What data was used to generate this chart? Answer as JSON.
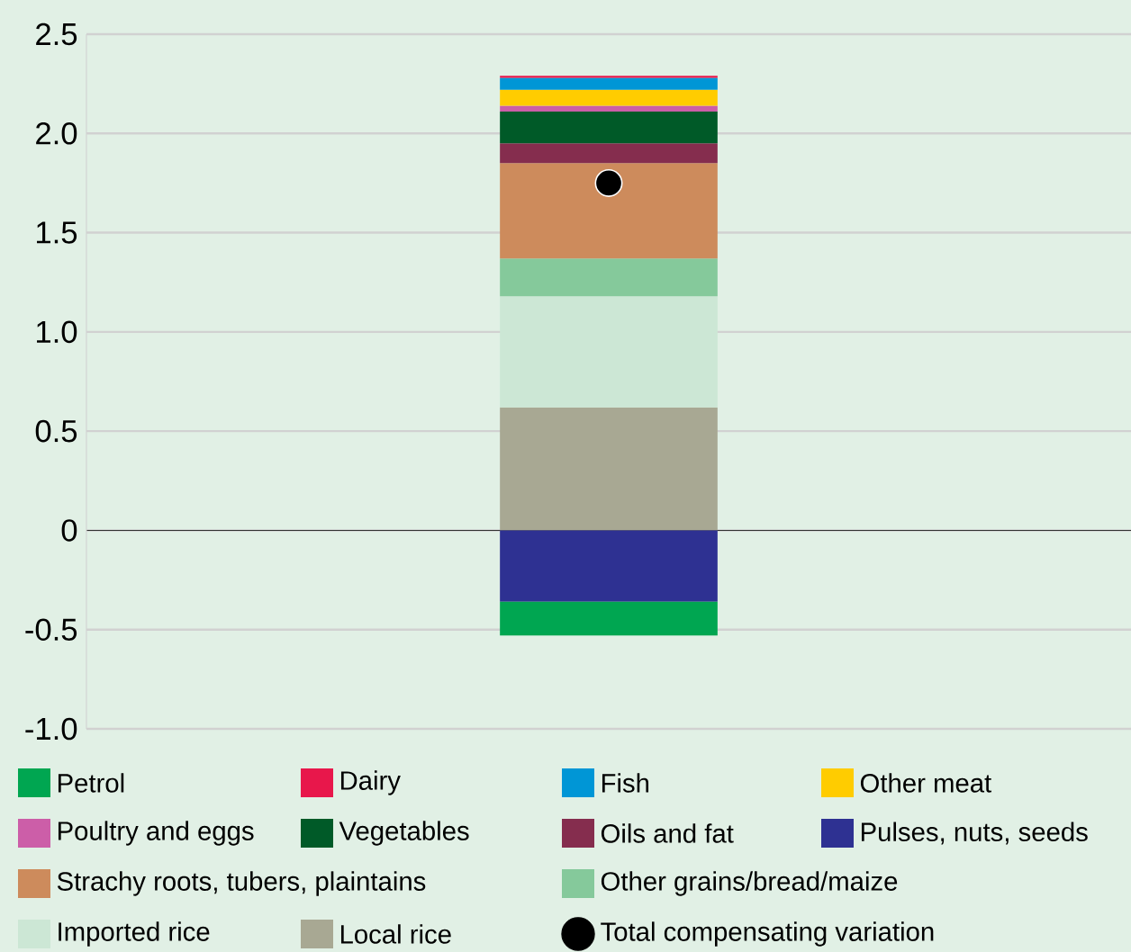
{
  "chart_data": {
    "type": "bar",
    "stacked": true,
    "categories": [
      null
    ],
    "series": [
      {
        "name": "Local rice",
        "color": "#a8a893",
        "values": [
          0.62
        ]
      },
      {
        "name": "Imported rice",
        "color": "#cce7d5",
        "values": [
          0.56
        ]
      },
      {
        "name": "Other grains/bread/maize",
        "color": "#85c99b",
        "values": [
          0.19
        ]
      },
      {
        "name": "Strachy roots, tubers, plaintains",
        "color": "#cd8b5c",
        "values": [
          0.48
        ]
      },
      {
        "name": "Oils and fat",
        "color": "#852d4e",
        "values": [
          0.1
        ]
      },
      {
        "name": "Vegetables",
        "color": "#005a28",
        "values": [
          0.16
        ]
      },
      {
        "name": "Poultry and eggs",
        "color": "#cc5ea8",
        "values": [
          0.03
        ]
      },
      {
        "name": "Other meat",
        "color": "#ffcc00",
        "values": [
          0.08
        ]
      },
      {
        "name": "Fish",
        "color": "#0096d6",
        "values": [
          0.06
        ]
      },
      {
        "name": "Dairy",
        "color": "#e8174b",
        "values": [
          0.01
        ]
      },
      {
        "name": "Pulses, nuts, seeds",
        "color": "#2e3192",
        "values": [
          -0.36
        ]
      },
      {
        "name": "Petrol",
        "color": "#00a651",
        "values": [
          -0.17
        ]
      },
      {
        "name": "Total compensating variation",
        "type": "scatter",
        "marker": "circle",
        "color": "#000000",
        "values": [
          1.75
        ]
      }
    ],
    "ylim": [
      -1.0,
      2.5
    ],
    "yticks": [
      {
        "value": -1.0,
        "label": "-1.0"
      },
      -0.5,
      0,
      0.5,
      {
        "value": 1.0,
        "label": "1.0"
      },
      1.5,
      {
        "value": 2.0,
        "label": "2.0"
      },
      2.5
    ],
    "grid": "y",
    "legend": "bottom"
  }
}
